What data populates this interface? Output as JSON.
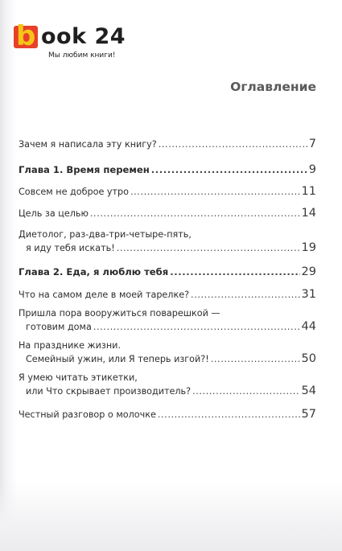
{
  "brand": {
    "badge_letter": "b",
    "name": "ook 24",
    "tagline": "Мы любим книги!",
    "colors": {
      "badge": "#e8402a",
      "letter": "#f5c518"
    }
  },
  "toc": {
    "title": "Оглавление",
    "entries": [
      {
        "line1": "",
        "line2": "Зачем я написала эту книгу?",
        "page": "7",
        "bold": false
      },
      {
        "line1": "",
        "line2": "Глава 1. Время перемен",
        "page": "9",
        "bold": true
      },
      {
        "line1": "",
        "line2": "Совсем не доброе утро",
        "page": "11",
        "bold": false
      },
      {
        "line1": "",
        "line2": "Цель за целью",
        "page": "14",
        "bold": false
      },
      {
        "line1": "Диетолог, раз-два-три-четыре-пять,",
        "line2": "я иду тебя искать!",
        "page": "19",
        "bold": false
      },
      {
        "line1": "",
        "line2": "Глава 2. Еда, я люблю тебя",
        "page": "29",
        "bold": true
      },
      {
        "line1": "",
        "line2": "Что на самом деле в моей тарелке?",
        "page": "31",
        "bold": false
      },
      {
        "line1": "Пришла пора вооружиться поварешкой —",
        "line2": "готовим дома",
        "page": "44",
        "bold": false
      },
      {
        "line1": "На празднике жизни.",
        "line2": "Семейный ужин, или Я теперь изгой?!",
        "page": "50",
        "bold": false
      },
      {
        "line1": "Я умею читать этикетки,",
        "line2": "или Что скрывает производитель?",
        "page": "54",
        "bold": false
      },
      {
        "line1": "",
        "line2": "Честный разговор о молочке",
        "page": "57",
        "bold": false
      }
    ]
  }
}
